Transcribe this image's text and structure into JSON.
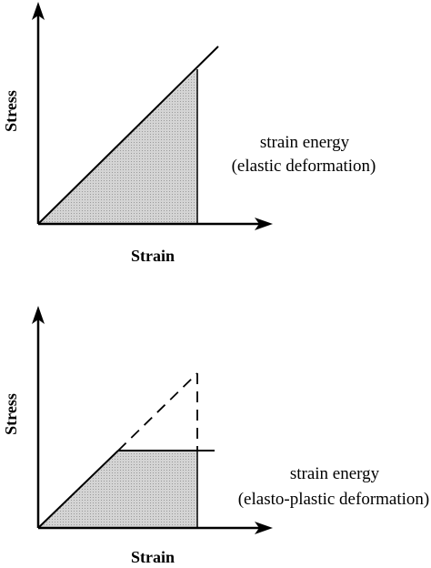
{
  "panel_top": {
    "y_axis_label": "Stress",
    "x_axis_label": "Strain",
    "caption_line1": "strain energy",
    "caption_line2": "(elastic deformation)"
  },
  "panel_bottom": {
    "y_axis_label": "Stress",
    "x_axis_label": "Strain",
    "caption_line1": "strain energy",
    "caption_line2": "(elasto-plastic deformation)"
  },
  "colors": {
    "ink": "#000000",
    "fill": "#c8c8c8",
    "background": "#ffffff"
  }
}
